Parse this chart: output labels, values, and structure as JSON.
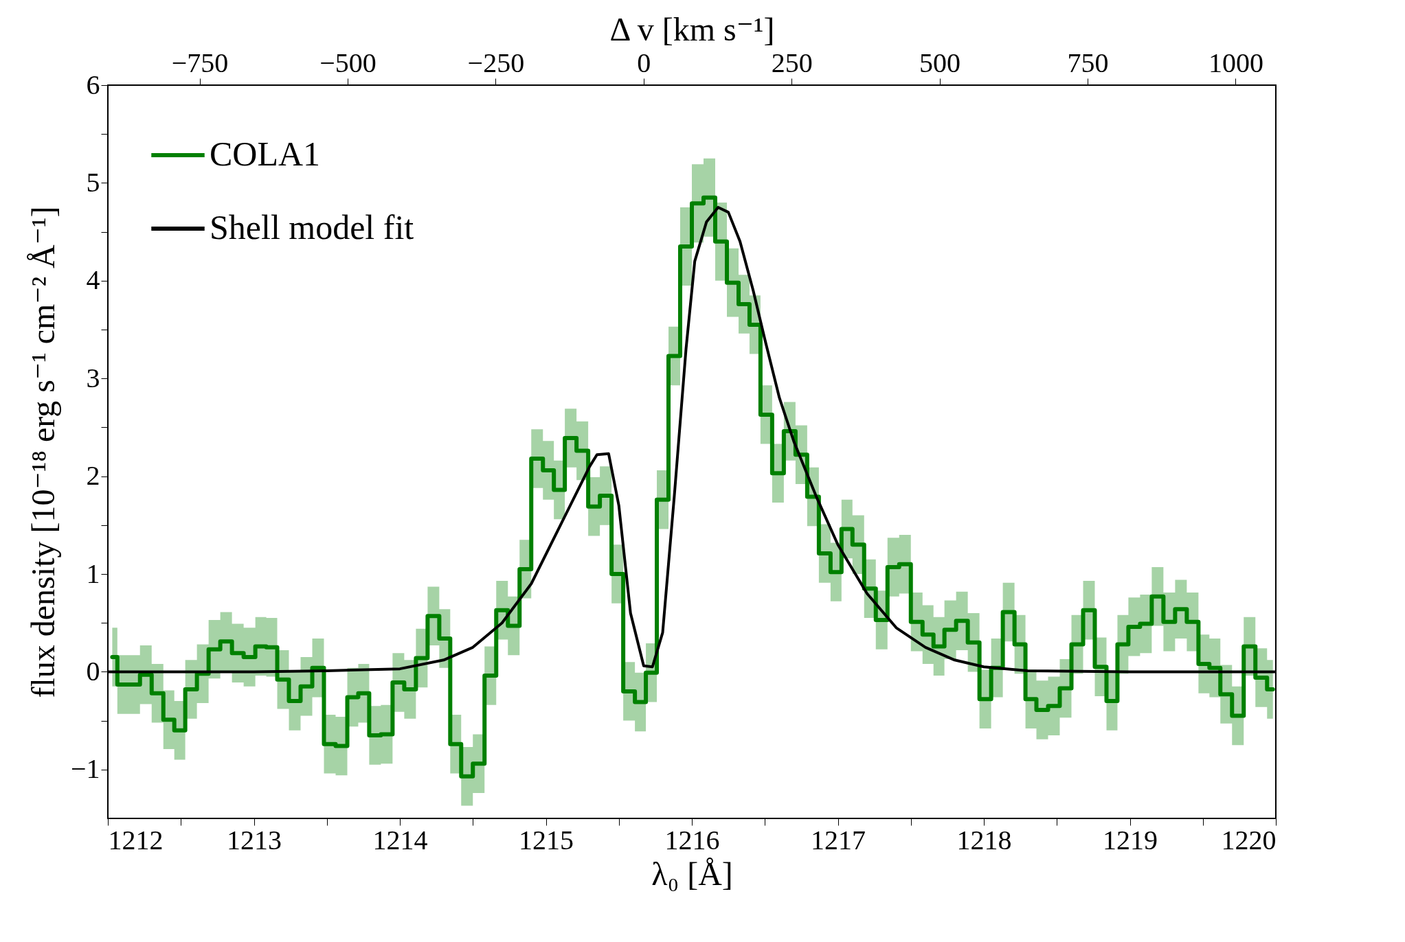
{
  "chart_data": {
    "type": "step",
    "xlabel": "λ₀ [Å]",
    "ylabel": "flux density [10⁻¹⁸ erg s⁻¹ cm⁻² Å⁻¹]",
    "x2label": "Δ v [km s⁻¹]",
    "xlim": [
      1212,
      1220
    ],
    "ylim": [
      -1.5,
      6
    ],
    "x2lim": [
      -905,
      1068
    ],
    "xticks": [
      1212,
      {
        "value": 1212.5,
        "label": null
      },
      1213,
      {
        "value": 1213.5,
        "label": null
      },
      1214,
      {
        "value": 1214.5,
        "label": null
      },
      1215,
      {
        "value": 1215.5,
        "label": null
      },
      1216,
      {
        "value": 1216.5,
        "label": null
      },
      1217,
      {
        "value": 1217.5,
        "label": null
      },
      1218,
      {
        "value": 1218.5,
        "label": null
      },
      1219,
      {
        "value": 1219.5,
        "label": null
      },
      1220
    ],
    "yticks": [
      {
        "value": -1,
        "label": "−1"
      },
      {
        "value": -0.5,
        "label": null
      },
      0,
      {
        "value": 0.5,
        "label": null
      },
      1,
      {
        "value": 1.5,
        "label": null
      },
      2,
      {
        "value": 2.5,
        "label": null
      },
      3,
      {
        "value": 3.5,
        "label": null
      },
      4,
      {
        "value": 4.5,
        "label": null
      },
      5,
      {
        "value": 5.5,
        "label": null
      },
      6
    ],
    "x2ticks": [
      {
        "value": -750,
        "label": "−750"
      },
      {
        "value": -500,
        "label": "−500"
      },
      {
        "value": -250,
        "label": "−250"
      },
      0,
      250,
      500,
      750,
      1000
    ],
    "legend": "top left",
    "series": [
      {
        "name": "COLA1",
        "color": "#008000",
        "x": [
          1212.03,
          1212.1,
          1212.18,
          1212.26,
          1212.34,
          1212.42,
          1212.49,
          1212.57,
          1212.65,
          1212.73,
          1212.81,
          1212.89,
          1212.97,
          1213.05,
          1213.12,
          1213.2,
          1213.28,
          1213.36,
          1213.44,
          1213.52,
          1213.6,
          1213.68,
          1213.75,
          1213.83,
          1213.91,
          1213.99,
          1214.07,
          1214.15,
          1214.23,
          1214.31,
          1214.38,
          1214.46,
          1214.54,
          1214.62,
          1214.7,
          1214.78,
          1214.86,
          1214.94,
          1215.02,
          1215.09,
          1215.17,
          1215.25,
          1215.33,
          1215.41,
          1215.49,
          1215.57,
          1215.65,
          1215.72,
          1215.8,
          1215.88,
          1215.96,
          1216.04,
          1216.12,
          1216.2,
          1216.28,
          1216.36,
          1216.43,
          1216.51,
          1216.59,
          1216.67,
          1216.75,
          1216.83,
          1216.91,
          1216.99,
          1217.06,
          1217.14,
          1217.22,
          1217.3,
          1217.38,
          1217.46,
          1217.54,
          1217.62,
          1217.69,
          1217.77,
          1217.85,
          1217.93,
          1218.01,
          1218.09,
          1218.17,
          1218.25,
          1218.32,
          1218.4,
          1218.48,
          1218.56,
          1218.64,
          1218.72,
          1218.8,
          1218.88,
          1218.95,
          1219.03,
          1219.11,
          1219.19,
          1219.27,
          1219.35,
          1219.43,
          1219.51,
          1219.58,
          1219.66,
          1219.74,
          1219.82,
          1219.9,
          1219.98
        ],
        "values": [
          0.15,
          -0.13,
          -0.13,
          -0.03,
          -0.22,
          -0.49,
          -0.6,
          -0.18,
          -0.02,
          0.23,
          0.31,
          0.19,
          0.15,
          0.26,
          0.25,
          -0.08,
          -0.3,
          -0.15,
          0.04,
          -0.74,
          -0.76,
          -0.26,
          -0.22,
          -0.65,
          -0.64,
          -0.11,
          -0.18,
          0.14,
          0.57,
          0.34,
          -0.74,
          -1.07,
          -0.94,
          -0.04,
          0.63,
          0.47,
          1.05,
          2.18,
          2.06,
          1.86,
          2.39,
          2.26,
          1.69,
          1.8,
          1.0,
          -0.2,
          -0.31,
          -0.01,
          1.76,
          3.23,
          4.35,
          4.79,
          4.85,
          4.4,
          3.98,
          3.76,
          3.55,
          2.63,
          2.03,
          2.46,
          2.22,
          1.79,
          1.21,
          1.02,
          1.46,
          1.3,
          0.85,
          0.53,
          1.07,
          1.1,
          0.51,
          0.38,
          0.26,
          0.43,
          0.52,
          0.3,
          -0.28,
          0.04,
          0.61,
          0.28,
          -0.28,
          -0.39,
          -0.35,
          -0.17,
          0.28,
          0.63,
          0.05,
          -0.3,
          0.28,
          0.46,
          0.49,
          0.77,
          0.51,
          0.64,
          0.51,
          0.08,
          0.04,
          -0.23,
          -0.45,
          0.26,
          -0.06,
          -0.18
        ],
        "lower": [
          -0.15,
          -0.43,
          -0.43,
          -0.33,
          -0.52,
          -0.79,
          -0.9,
          -0.48,
          -0.32,
          -0.07,
          0.01,
          -0.11,
          -0.15,
          -0.04,
          -0.05,
          -0.38,
          -0.6,
          -0.45,
          -0.26,
          -1.04,
          -1.06,
          -0.56,
          -0.52,
          -0.95,
          -0.94,
          -0.41,
          -0.48,
          -0.16,
          0.27,
          0.04,
          -1.04,
          -1.37,
          -1.24,
          -0.34,
          0.33,
          0.17,
          0.75,
          1.88,
          1.76,
          1.56,
          2.09,
          1.96,
          1.39,
          1.5,
          0.7,
          -0.5,
          -0.61,
          -0.31,
          1.46,
          2.93,
          3.95,
          4.39,
          4.45,
          4.0,
          3.63,
          3.46,
          3.25,
          2.33,
          1.73,
          2.16,
          1.92,
          1.49,
          0.91,
          0.72,
          1.16,
          1.0,
          0.55,
          0.23,
          0.77,
          0.8,
          0.21,
          0.08,
          -0.04,
          0.13,
          0.22,
          0.0,
          -0.58,
          -0.26,
          0.31,
          -0.02,
          -0.58,
          -0.69,
          -0.65,
          -0.47,
          -0.02,
          0.33,
          -0.25,
          -0.6,
          -0.02,
          0.16,
          0.19,
          0.47,
          0.21,
          0.34,
          0.21,
          -0.22,
          -0.26,
          -0.53,
          -0.75,
          -0.04,
          -0.36,
          -0.48
        ],
        "upper": [
          0.45,
          0.17,
          0.17,
          0.27,
          0.08,
          -0.19,
          -0.3,
          0.12,
          0.28,
          0.53,
          0.61,
          0.49,
          0.45,
          0.56,
          0.55,
          0.22,
          0.0,
          0.15,
          0.34,
          -0.44,
          -0.46,
          0.04,
          0.08,
          -0.35,
          -0.34,
          0.19,
          0.12,
          0.44,
          0.87,
          0.64,
          -0.44,
          -0.77,
          -0.64,
          0.26,
          0.93,
          0.77,
          1.35,
          2.48,
          2.36,
          2.16,
          2.69,
          2.56,
          1.99,
          2.1,
          1.3,
          0.1,
          -0.01,
          0.29,
          2.06,
          3.53,
          4.75,
          5.19,
          5.25,
          4.8,
          4.33,
          4.06,
          3.85,
          2.93,
          2.33,
          2.76,
          2.52,
          2.09,
          1.51,
          1.32,
          1.76,
          1.6,
          1.15,
          0.83,
          1.37,
          1.4,
          0.81,
          0.68,
          0.56,
          0.73,
          0.82,
          0.6,
          0.02,
          0.34,
          0.91,
          0.58,
          0.02,
          -0.09,
          -0.05,
          0.13,
          0.58,
          0.93,
          0.35,
          0.0,
          0.58,
          0.76,
          0.79,
          1.07,
          0.81,
          0.94,
          0.81,
          0.38,
          0.34,
          0.07,
          -0.15,
          0.56,
          0.24,
          0.12
        ]
      },
      {
        "name": "Shell model fit",
        "type": "line",
        "color": "#000000",
        "x": [
          1212,
          1213,
          1213.5,
          1214,
          1214.3,
          1214.5,
          1214.7,
          1214.9,
          1215.1,
          1215.3,
          1215.35,
          1215.43,
          1215.5,
          1215.58,
          1215.67,
          1215.73,
          1215.8,
          1215.88,
          1215.96,
          1216.02,
          1216.1,
          1216.18,
          1216.25,
          1216.33,
          1216.42,
          1216.5,
          1216.6,
          1216.7,
          1216.85,
          1217,
          1217.2,
          1217.4,
          1217.6,
          1217.8,
          1218,
          1218.3,
          1219,
          1220
        ],
        "values": [
          0,
          0,
          0.01,
          0.03,
          0.12,
          0.25,
          0.5,
          0.9,
          1.5,
          2.1,
          2.22,
          2.23,
          1.7,
          0.6,
          0.06,
          0.05,
          0.4,
          1.8,
          3.3,
          4.2,
          4.6,
          4.75,
          4.7,
          4.4,
          3.9,
          3.4,
          2.8,
          2.35,
          1.8,
          1.3,
          0.8,
          0.45,
          0.25,
          0.12,
          0.05,
          0.01,
          0,
          0
        ]
      }
    ]
  }
}
